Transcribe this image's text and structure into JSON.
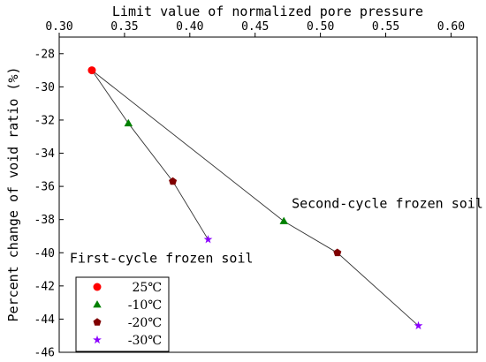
{
  "chart_data": {
    "type": "scatter",
    "xlabel": "Limit value of normalized pore pressure",
    "ylabel": "Percent change  of void ratio (%)",
    "xlim": [
      0.3,
      0.62
    ],
    "ylim": [
      -46,
      -27
    ],
    "x_ticks": [
      "0.30",
      "0.35",
      "0.40",
      "0.45",
      "0.50",
      "0.55",
      "0.60"
    ],
    "y_ticks": [
      "-28",
      "-30",
      "-32",
      "-34",
      "-36",
      "-38",
      "-40",
      "-42",
      "-44",
      "-46"
    ],
    "x_axis_position": "top",
    "grid": false,
    "legend_position": "bottom-left",
    "series": [
      {
        "name": "25℃",
        "color": "#ff0000",
        "marker": "circle",
        "x": [
          0.325
        ],
        "y": [
          -29.0
        ]
      },
      {
        "name": "-10℃",
        "color": "#008000",
        "marker": "triangle",
        "x": [
          0.353,
          0.472
        ],
        "y": [
          -32.2,
          -38.1
        ]
      },
      {
        "name": "-20℃",
        "color": "#800000",
        "marker": "pentagon",
        "x": [
          0.387,
          0.513
        ],
        "y": [
          -35.7,
          -40.0
        ]
      },
      {
        "name": "-30℃",
        "color": "#8b00ff",
        "marker": "star",
        "x": [
          0.414,
          0.575
        ],
        "y": [
          -39.2,
          -44.4
        ]
      }
    ],
    "lines": [
      {
        "label": "First-cycle frozen soil",
        "x": [
          0.325,
          0.353,
          0.387,
          0.414
        ],
        "y": [
          -29.0,
          -32.2,
          -35.7,
          -39.2
        ]
      },
      {
        "label": "Second-cycle frozen soil",
        "x": [
          0.325,
          0.472,
          0.513,
          0.575
        ],
        "y": [
          -29.0,
          -38.1,
          -40.0,
          -44.4
        ]
      }
    ],
    "annotations": [
      {
        "text": "Second-cycle frozen soil",
        "x": 0.478,
        "y": -37.3
      },
      {
        "text": "First-cycle frozen soil",
        "x": 0.308,
        "y": -40.6
      }
    ]
  }
}
